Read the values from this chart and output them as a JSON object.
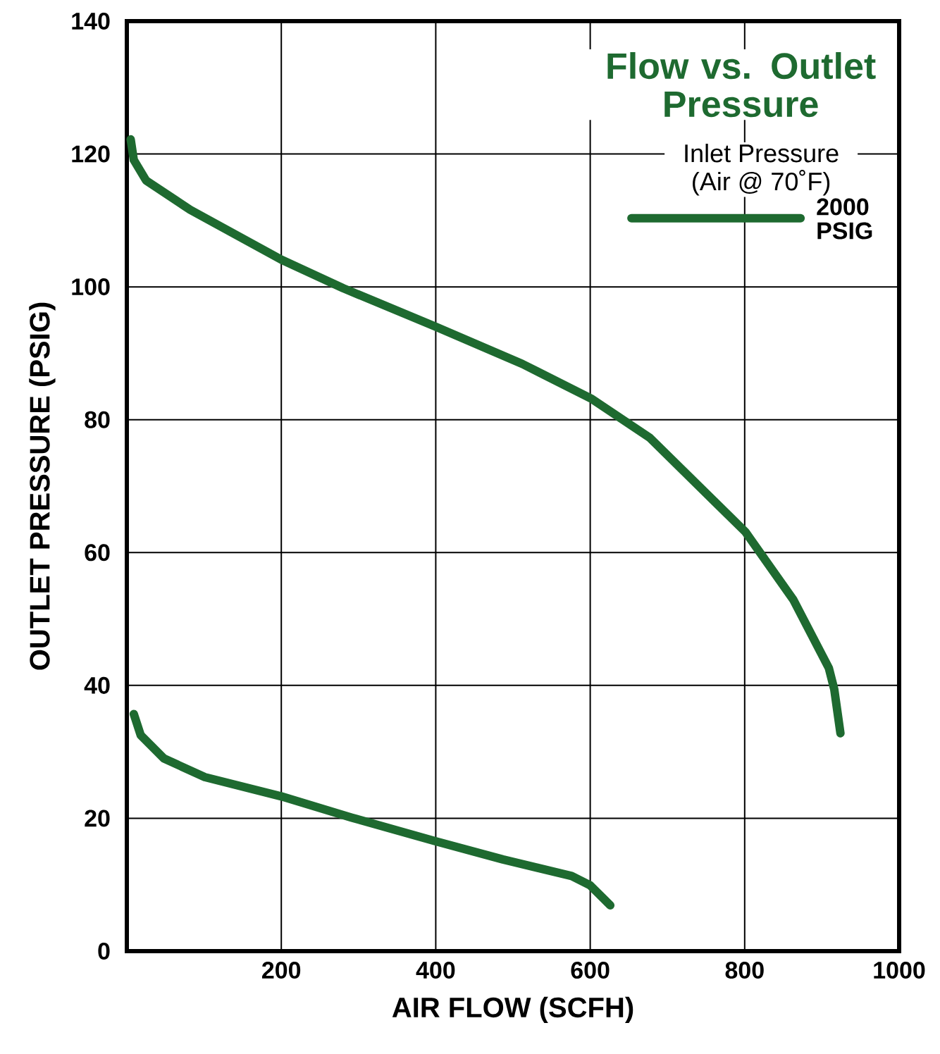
{
  "chart_data": {
    "type": "line",
    "title": "Flow vs. Outlet Pressure",
    "legend_title": "Inlet Pressure (Air @ 70˚F)",
    "xlabel": "AIR FLOW (SCFH)",
    "ylabel": "OUTLET PRESSURE (PSIG)",
    "xlim": [
      0,
      1000
    ],
    "ylim": [
      0,
      140
    ],
    "xticks": [
      200,
      400,
      600,
      800,
      1000
    ],
    "yticks": [
      0,
      20,
      40,
      60,
      80,
      100,
      120,
      140
    ],
    "grid": true,
    "legend": "top right",
    "line_style": "solid",
    "series": [
      {
        "name": "2000 PSIG",
        "color": "#1e6a30",
        "x": [
          5,
          9,
          25,
          82,
          200,
          280,
          400,
          512,
          601,
          677,
          801,
          863,
          909,
          916,
          924
        ],
        "values": [
          122.2,
          119.1,
          116,
          111.6,
          104.1,
          99.8,
          94.0,
          88.4,
          83.2,
          77.3,
          63.1,
          52.9,
          42.6,
          39.4,
          32.8
        ]
      },
      {
        "color": "#1e6a30",
        "x": [
          9,
          18,
          48,
          101,
          200,
          291,
          398,
          487,
          576,
          600,
          626
        ],
        "values": [
          35.7,
          32.5,
          29.0,
          26.2,
          23.3,
          20.1,
          16.6,
          13.8,
          11.3,
          9.9,
          6.9
        ]
      }
    ]
  }
}
